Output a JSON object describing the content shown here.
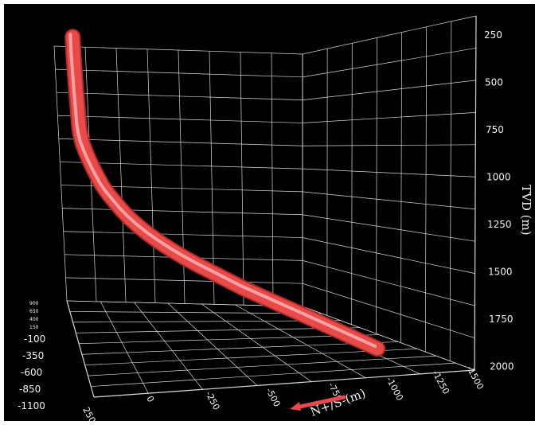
{
  "chart_data": {
    "type": "line",
    "subtype": "3d-well-trajectory",
    "title": "",
    "background": "#000000",
    "grid": true,
    "grid_color": "#d8d8d8",
    "label_color": "#f2f2f2",
    "accent": "#e84a4a",
    "tvd_axis": {
      "label": "TVD (m)",
      "ticks": [
        "250",
        "500",
        "750",
        "1000",
        "1250",
        "1500",
        "1750",
        "2000"
      ],
      "range": [
        100,
        2000
      ],
      "inverted": true
    },
    "ns_axis": {
      "label": "N+/S-(m)",
      "ticks": [
        "250",
        "0",
        "-250",
        "-500",
        "-750",
        "-1000",
        "-1250",
        "-1500"
      ],
      "range": [
        250,
        -1500
      ],
      "arrow": "points toward N+"
    },
    "ew_axis": {
      "ticks_small": [
        "900",
        "650",
        "400",
        "150"
      ],
      "ticks": [
        "-100",
        "-350",
        "-600",
        "-850",
        "-1100"
      ],
      "range": [
        900,
        -1100
      ]
    },
    "series": [
      {
        "tvd": [
          100,
          200,
          300,
          400,
          500,
          600,
          650,
          700,
          750,
          800,
          850,
          900,
          950,
          1000,
          1050,
          1100,
          1150,
          1200,
          1250,
          1300,
          1350,
          1400,
          1450,
          1500,
          1550,
          1600,
          1650,
          1700,
          1750,
          1800,
          1850,
          1900,
          1950,
          2000
        ],
        "ns": [
          250,
          250,
          248,
          246,
          243,
          240,
          236,
          228,
          215,
          200,
          183,
          165,
          145,
          120,
          90,
          60,
          25,
          -15,
          -60,
          -110,
          -165,
          -225,
          -290,
          -360,
          -430,
          -500,
          -580,
          -660,
          -740,
          -820,
          -900,
          -980,
          -1060,
          -1140
        ],
        "ew": [
          -850,
          -850,
          -850,
          -850,
          -850,
          -849,
          -848,
          -845,
          -838,
          -830,
          -820,
          -808,
          -795,
          -780,
          -765,
          -750,
          -735,
          -720,
          -705,
          -690,
          -675,
          -660,
          -645,
          -630,
          -615,
          -600,
          -585,
          -570,
          -555,
          -540,
          -525,
          -510,
          -495,
          -480
        ]
      }
    ]
  }
}
